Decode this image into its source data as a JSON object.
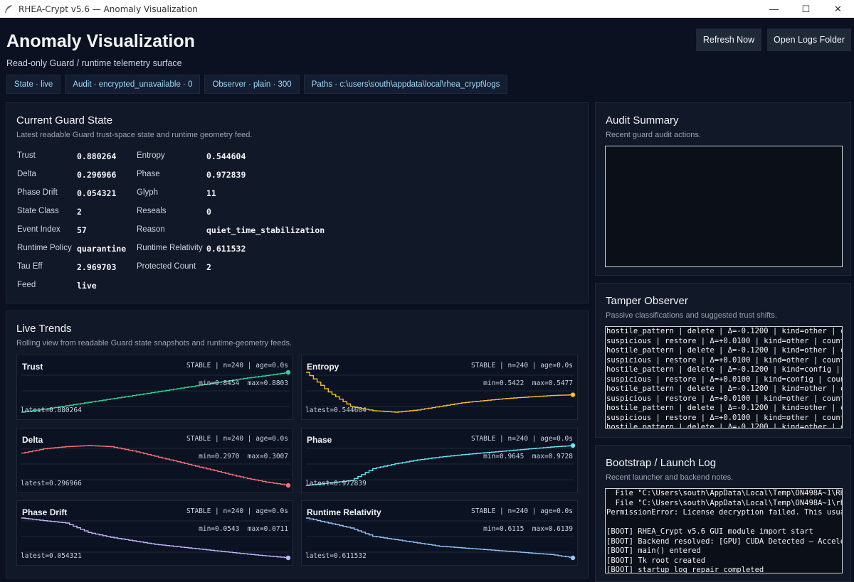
{
  "window": {
    "title": "RHEA-Crypt v5.6 — Anomaly Visualization",
    "minimize": "—",
    "maximize": "☐",
    "close": "✕"
  },
  "header": {
    "title": "Anomaly Visualization",
    "subtitle": "Read-only Guard / runtime telemetry surface",
    "refresh_label": "Refresh Now",
    "open_logs_label": "Open Logs Folder"
  },
  "chips": [
    "State · live",
    "Audit · encrypted_unavailable · 0",
    "Observer · plain · 300",
    "Paths · c:\\users\\south\\appdata\\local\\rhea_crypt\\logs"
  ],
  "guard_state": {
    "title": "Current Guard State",
    "subtitle": "Latest readable Guard trust-space state and runtime geometry feed.",
    "left": [
      {
        "label": "Trust",
        "value": "0.880264"
      },
      {
        "label": "Delta",
        "value": "0.296966"
      },
      {
        "label": "Phase Drift",
        "value": "0.054321"
      },
      {
        "label": "State Class",
        "value": "2"
      },
      {
        "label": "Event Index",
        "value": "57"
      },
      {
        "label": "Runtime Policy",
        "value": "quarantine"
      },
      {
        "label": "Tau Eff",
        "value": "2.969703"
      },
      {
        "label": "Feed",
        "value": "live"
      }
    ],
    "right": [
      {
        "label": "Entropy",
        "value": "0.544604"
      },
      {
        "label": "Phase",
        "value": "0.972839"
      },
      {
        "label": "Glyph",
        "value": "11"
      },
      {
        "label": "Reseals",
        "value": "0"
      },
      {
        "label": "Reason",
        "value": "quiet_time_stabilization"
      },
      {
        "label": "Runtime Relativity",
        "value": "0.611532"
      },
      {
        "label": "Protected Count",
        "value": "2"
      }
    ]
  },
  "trends": {
    "title": "Live Trends",
    "subtitle": "Rolling view from readable Guard state snapshots and runtime-geometry feeds.",
    "status": "STABLE | n=240 | age=0.0s"
  },
  "chart_data": [
    {
      "type": "line",
      "title": "Trust",
      "color": "#34d399",
      "min_label": "min=0.8454",
      "max_label": "max=0.8803",
      "latest_label": "latest=0.880264",
      "ylim": [
        0.8454,
        0.8803
      ],
      "shape": "rising",
      "values": [
        0.8454,
        0.848,
        0.851,
        0.854,
        0.857,
        0.86,
        0.863,
        0.866,
        0.869,
        0.872,
        0.875,
        0.8775,
        0.8803
      ]
    },
    {
      "type": "line",
      "title": "Entropy",
      "color": "#fbbf24",
      "min_label": "min=0.5422",
      "max_label": "max=0.5477",
      "latest_label": "latest=0.544604",
      "ylim": [
        0.5422,
        0.5477
      ],
      "shape": "dip",
      "values": [
        0.5477,
        0.545,
        0.543,
        0.5424,
        0.5422,
        0.5425,
        0.543,
        0.5435,
        0.5438,
        0.5441,
        0.5443,
        0.5445,
        0.5446
      ]
    },
    {
      "type": "line",
      "title": "Delta",
      "color": "#f87171",
      "min_label": "min=0.2970",
      "max_label": "max=0.3007",
      "latest_label": "latest=0.296966",
      "ylim": [
        0.297,
        0.3007
      ],
      "shape": "hump",
      "values": [
        0.3,
        0.3004,
        0.3006,
        0.3007,
        0.3006,
        0.3002,
        0.2997,
        0.2992,
        0.2987,
        0.2982,
        0.2977,
        0.2973,
        0.297
      ]
    },
    {
      "type": "line",
      "title": "Phase",
      "color": "#67e8f9",
      "min_label": "min=0.9645",
      "max_label": "max=0.9728",
      "latest_label": "latest=0.972839",
      "ylim": [
        0.9645,
        0.9728
      ],
      "shape": "rising",
      "values": [
        0.9645,
        0.965,
        0.9655,
        0.968,
        0.969,
        0.9698,
        0.9704,
        0.9709,
        0.9713,
        0.9717,
        0.9721,
        0.9725,
        0.9728
      ]
    },
    {
      "type": "line",
      "title": "Phase Drift",
      "color": "#c4b5fd",
      "min_label": "min=0.0543",
      "max_label": "max=0.0711",
      "latest_label": "latest=0.054321",
      "ylim": [
        0.0543,
        0.0711
      ],
      "shape": "falling",
      "values": [
        0.0711,
        0.07,
        0.069,
        0.065,
        0.063,
        0.0615,
        0.06,
        0.059,
        0.058,
        0.057,
        0.056,
        0.0551,
        0.0543
      ]
    },
    {
      "type": "line",
      "title": "Runtime Relativity",
      "color": "#93c5fd",
      "min_label": "min=0.6115",
      "max_label": "max=0.6139",
      "latest_label": "latest=0.611532",
      "ylim": [
        0.6115,
        0.6139
      ],
      "shape": "falling",
      "values": [
        0.6139,
        0.6136,
        0.6133,
        0.6128,
        0.6126,
        0.6124,
        0.6122,
        0.6121,
        0.612,
        0.6119,
        0.6118,
        0.6117,
        0.6115
      ]
    }
  ],
  "audit": {
    "title": "Audit Summary",
    "subtitle": "Recent guard audit actions."
  },
  "tamper": {
    "title": "Tamper Observer",
    "subtitle": "Passive classifications and suggested trust shifts.",
    "lines": [
      "hostile_pattern | delete | Δ=-0.1200 | kind=other | c",
      "suspicious | restore | Δ=+0.0100 | kind=other | count",
      "hostile_pattern | delete | Δ=-0.1200 | kind=other | c",
      "suspicious | restore | Δ=+0.0100 | kind=other | count",
      "hostile_pattern | delete | Δ=-0.1200 | kind=config | ",
      "suspicious | restore | Δ=+0.0100 | kind=config | coun",
      "hostile_pattern | delete | Δ=-0.1200 | kind=other | c",
      "suspicious | restore | Δ=+0.0100 | kind=other | count",
      "hostile_pattern | delete | Δ=-0.1200 | kind=other | c",
      "suspicious | restore | Δ=+0.0100 | kind=other | count",
      "hostile_pattern | delete | Δ=-0.1200 | kind=other | c"
    ]
  },
  "bootstrap": {
    "title": "Bootstrap / Launch Log",
    "subtitle": "Recent launcher and backend notes.",
    "lines": [
      "  File \"C:\\Users\\south\\AppData\\Local\\Temp\\ON498A~1\\RH",
      "  File \"C:\\Users\\south\\AppData\\Local\\Temp\\ON498A~1\\rh",
      "PermissionError: License decryption failed. This usua",
      "",
      "[BOOT] RHEA_Crypt v5.6 GUI module import start",
      "[BOOT] Backend resolved: [GPU] CUDA Detected — Accele",
      "[BOOT] main() entered",
      "[BOOT] Tk root created",
      "[BOOT] startup log repair completed"
    ]
  }
}
